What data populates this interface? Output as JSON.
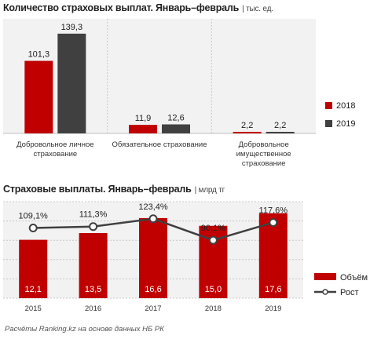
{
  "charts": {
    "chart1": {
      "title": "Количество страховых выплат. Январь–февраль",
      "unit": "| тыс. ед."
    },
    "chart2": {
      "title": "Страховые выплаты. Январь–февраль",
      "unit": "| млрд тг"
    }
  },
  "footer": "Расчёты Ranking.kz на основе данных НБ РК",
  "chart_data": [
    {
      "type": "bar",
      "title": "Количество страховых выплат. Январь–февраль",
      "unit": "тыс. ед.",
      "categories": [
        "Добровольное личное страхование",
        "Обязательное страхование",
        "Добровольное имущественное страхование"
      ],
      "category_lines": [
        [
          "Добровольное личное",
          "страхование"
        ],
        [
          "Обязательное страхование"
        ],
        [
          "Добровольное",
          "имущественное",
          "страхование"
        ]
      ],
      "series": [
        {
          "name": "2018",
          "values": [
            101.3,
            11.9,
            2.2
          ],
          "labels": [
            "101,3",
            "11,9",
            "2,2"
          ],
          "color": "#c00000"
        },
        {
          "name": "2019",
          "values": [
            139.3,
            12.6,
            2.2
          ],
          "labels": [
            "139,3",
            "12,6",
            "2,2"
          ],
          "color": "#404040"
        }
      ],
      "ylim": [
        0,
        160
      ],
      "grid": "vertical",
      "legend_position": "right"
    },
    {
      "type": "bar+line",
      "title": "Страховые выплаты. Январь–февраль",
      "unit": "млрд тг",
      "categories": [
        "2015",
        "2016",
        "2017",
        "2018",
        "2019"
      ],
      "series": [
        {
          "name": "Объём",
          "type": "bar",
          "values": [
            12.1,
            13.5,
            16.6,
            15.0,
            17.6
          ],
          "labels": [
            "12,1",
            "13,5",
            "16,6",
            "15,0",
            "17,6"
          ],
          "color": "#c00000"
        },
        {
          "name": "Рост",
          "type": "line",
          "values": [
            109.1,
            111.3,
            123.4,
            90.1,
            117.6
          ],
          "labels": [
            "109,1%",
            "111,3%",
            "123,4%",
            "90,1%",
            "117,6%"
          ],
          "color": "#404040"
        }
      ],
      "bar_ylim": [
        0,
        20
      ],
      "line_ylim": [
        0,
        150
      ],
      "grid": "horizontal",
      "legend_position": "right"
    }
  ]
}
